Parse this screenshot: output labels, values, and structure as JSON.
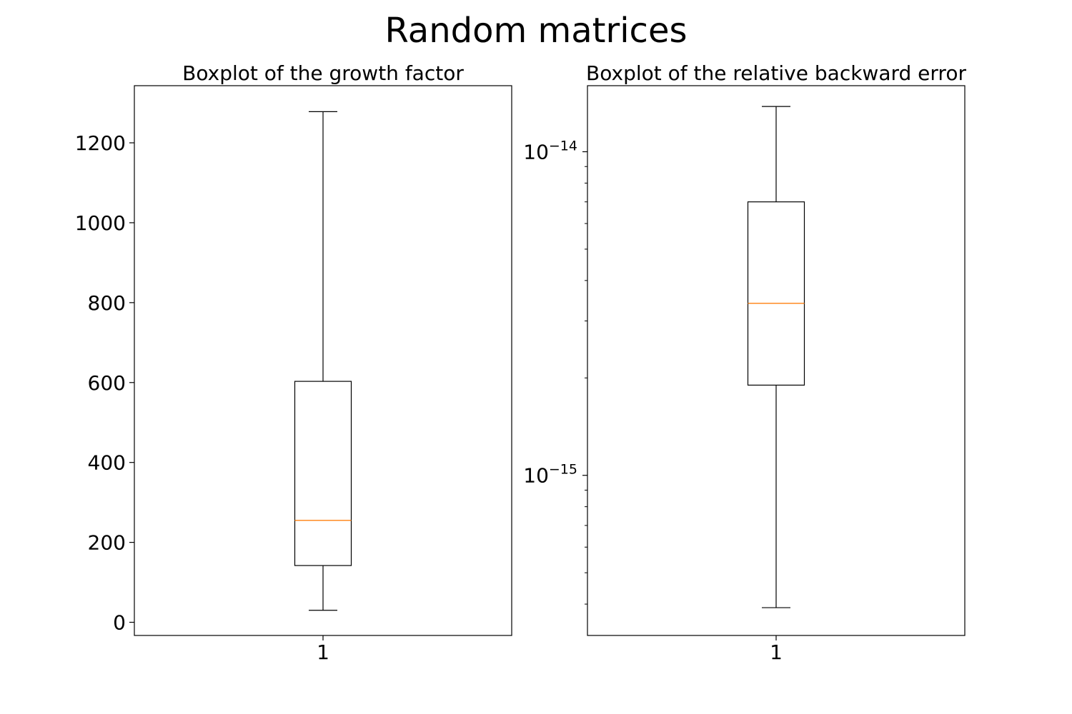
{
  "title": "Random matrices",
  "chart_data": [
    {
      "type": "boxplot",
      "title": "Boxplot of the growth factor",
      "xlabel": "",
      "ylabel": "",
      "yscale": "linear",
      "ylim": [
        -33,
        1343
      ],
      "yticks": [
        0,
        200,
        400,
        600,
        800,
        1000,
        1200
      ],
      "ytick_labels": [
        "0",
        "200",
        "400",
        "600",
        "800",
        "1000",
        "1200"
      ],
      "categories": [
        "1"
      ],
      "boxes": [
        {
          "category": "1",
          "whisker_low": 30,
          "q1": 142,
          "median": 255,
          "q3": 603,
          "whisker_high": 1278
        }
      ],
      "median_color": "#ff7f0e",
      "grid": false
    },
    {
      "type": "boxplot",
      "title": "Boxplot of the relative backward error",
      "xlabel": "",
      "ylabel": "",
      "yscale": "log",
      "ylim": [
        3.2e-16,
        1.6e-14
      ],
      "yticks": [
        1e-15,
        1e-14
      ],
      "ytick_labels": [
        {
          "base": "10",
          "exp": "−15"
        },
        {
          "base": "10",
          "exp": "−14"
        }
      ],
      "minor_ticks": [
        4e-16,
        5e-16,
        6e-16,
        7e-16,
        8e-16,
        9e-16,
        2e-15,
        3e-15,
        4e-15,
        5e-15,
        6e-15,
        7e-15,
        8e-15,
        9e-15
      ],
      "categories": [
        "1"
      ],
      "boxes": [
        {
          "category": "1",
          "whisker_low": 3.9e-16,
          "q1": 1.9e-15,
          "median": 3.4e-15,
          "q3": 7e-15,
          "whisker_high": 1.38e-14
        }
      ],
      "median_color": "#ff7f0e",
      "grid": false
    }
  ]
}
